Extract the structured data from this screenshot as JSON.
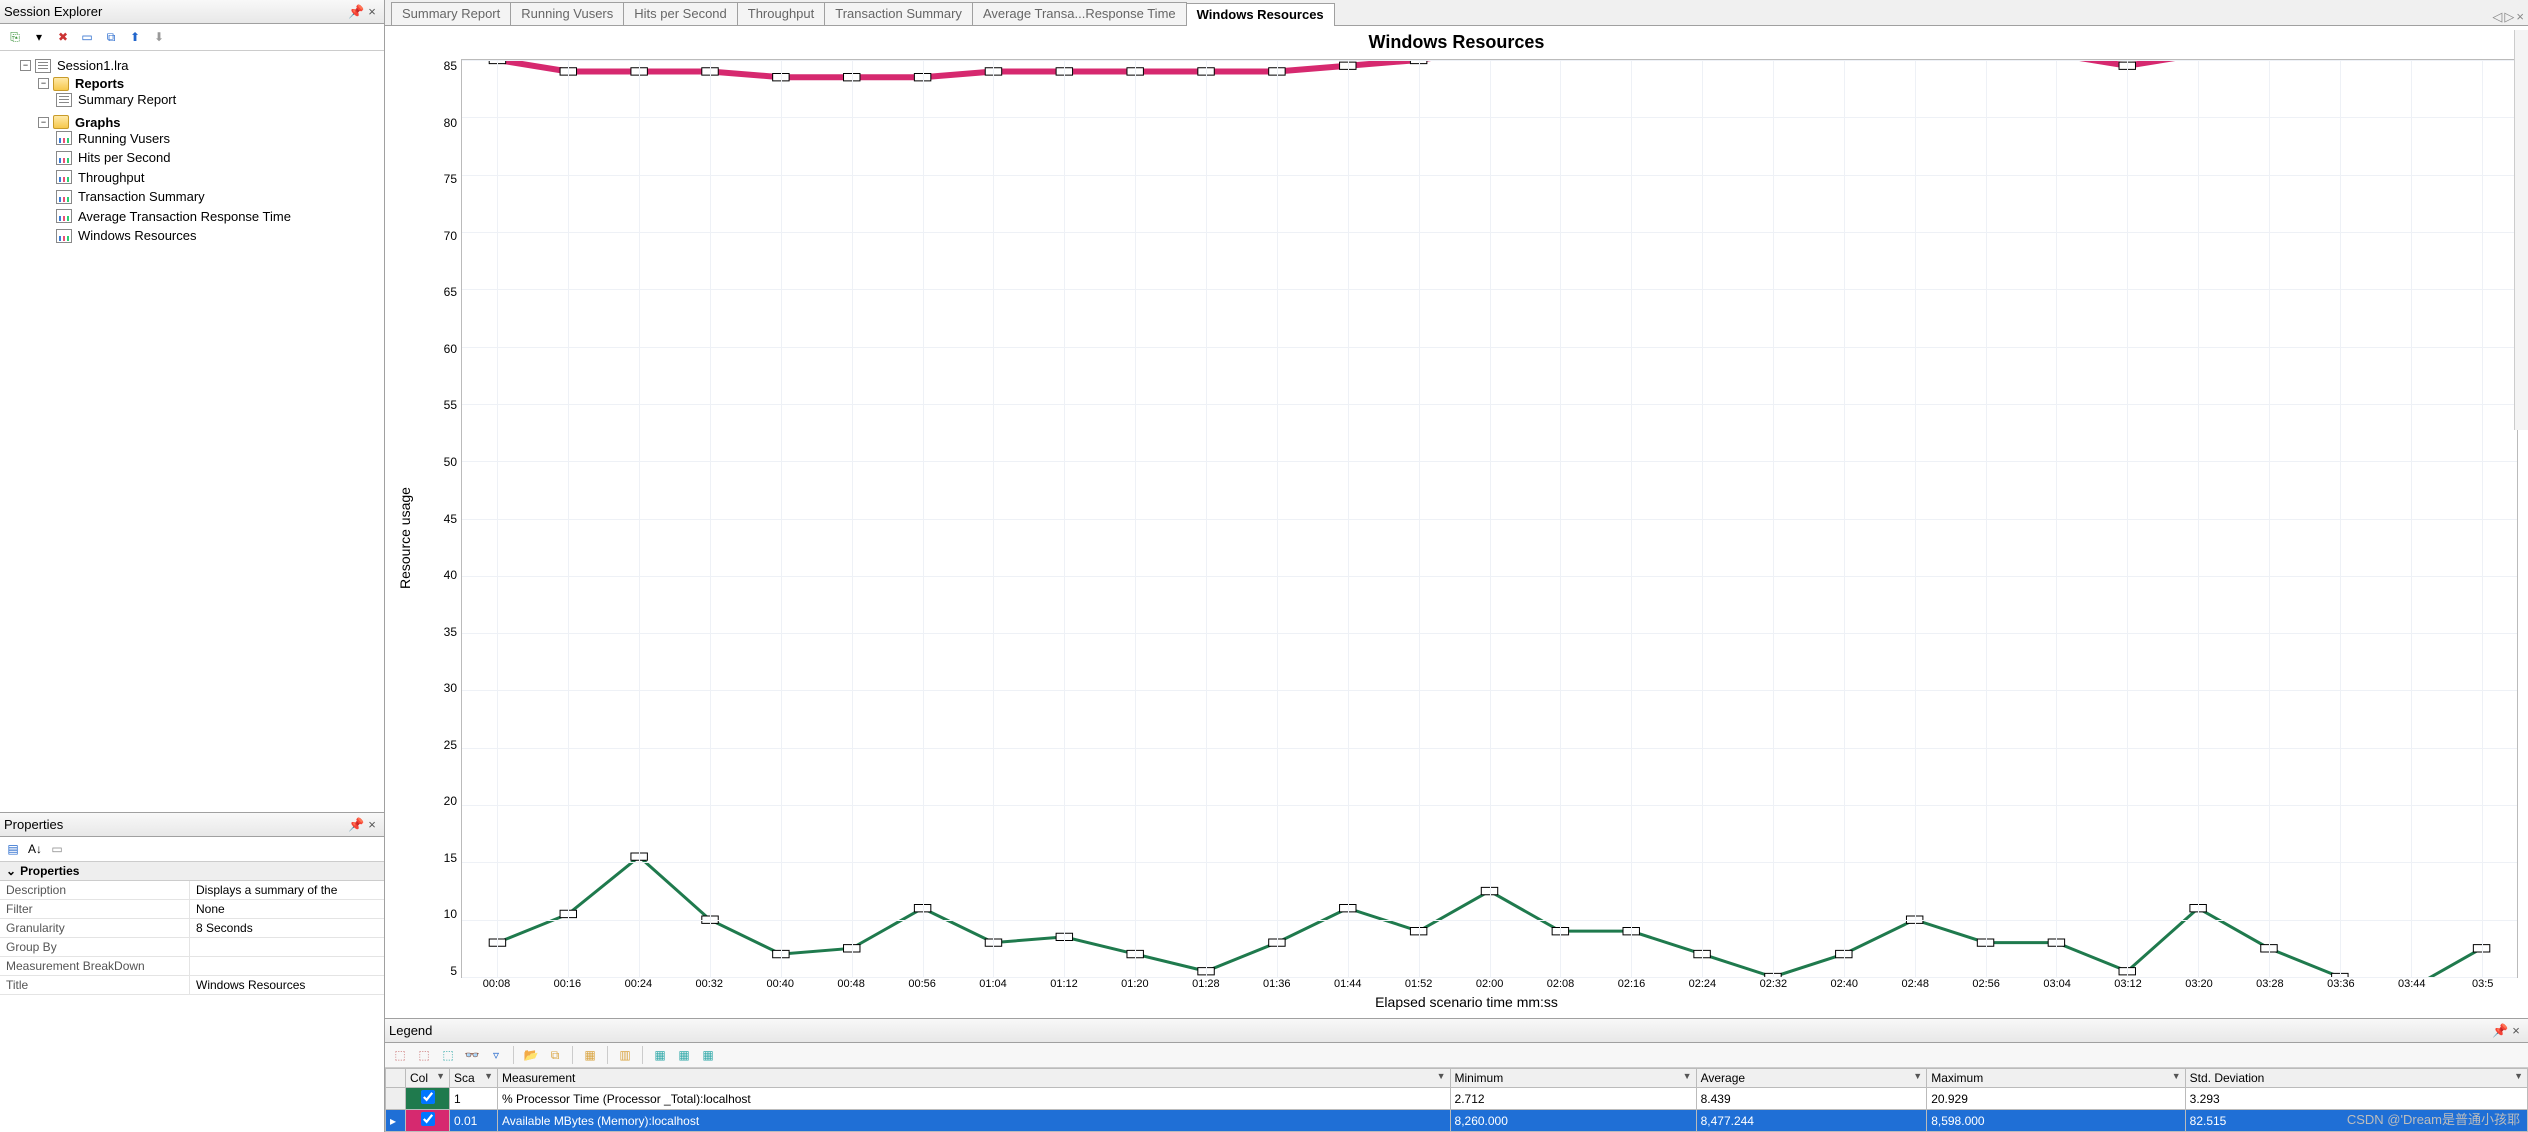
{
  "sessionExplorer": {
    "title": "Session Explorer",
    "rootLabel": "Session1.lra",
    "reports": {
      "label": "Reports",
      "items": [
        "Summary Report"
      ]
    },
    "graphs": {
      "label": "Graphs",
      "items": [
        "Running Vusers",
        "Hits per Second",
        "Throughput",
        "Transaction Summary",
        "Average Transaction Response Time",
        "Windows Resources"
      ]
    }
  },
  "properties": {
    "title": "Properties",
    "group": "Properties",
    "rows": [
      {
        "k": "Description",
        "v": "Displays a summary of the"
      },
      {
        "k": "Filter",
        "v": "None"
      },
      {
        "k": "Granularity",
        "v": "8 Seconds"
      },
      {
        "k": "Group By",
        "v": ""
      },
      {
        "k": "Measurement BreakDown",
        "v": ""
      },
      {
        "k": "Title",
        "v": "Windows Resources"
      }
    ]
  },
  "tabs": {
    "items": [
      "Summary Report",
      "Running Vusers",
      "Hits per Second",
      "Throughput",
      "Transaction Summary",
      "Average Transa...Response Time",
      "Windows Resources"
    ],
    "activeIndex": 6
  },
  "chart": {
    "title": "Windows Resources",
    "ylabel": "Resource usage",
    "xlabel": "Elapsed scenario time mm:ss",
    "ylim": [
      5,
      85
    ],
    "ytick_step": 5,
    "xticks": [
      "00:08",
      "00:16",
      "00:24",
      "00:32",
      "00:40",
      "00:48",
      "00:56",
      "01:04",
      "01:12",
      "01:20",
      "01:28",
      "01:36",
      "01:44",
      "01:52",
      "02:00",
      "02:08",
      "02:16",
      "02:24",
      "02:32",
      "02:40",
      "02:48",
      "02:56",
      "03:04",
      "03:12",
      "03:20",
      "03:28",
      "03:36",
      "03:44",
      "03:5"
    ],
    "background_color": "#ffffff",
    "grid_color": "#eef1f6",
    "series": [
      {
        "name": "Available MBytes",
        "color": "#d6296f",
        "width": 3,
        "marker": "square",
        "values": [
          85,
          84,
          84,
          84,
          83.5,
          83.5,
          83.5,
          84,
          84,
          84,
          84,
          84,
          84.5,
          85,
          86,
          86,
          85.5,
          85.5,
          85.5,
          85.5,
          85.5,
          85.5,
          85.5,
          84.5,
          85.5,
          85.5,
          85.5,
          85.5,
          85.5
        ]
      },
      {
        "name": "% Processor Time",
        "color": "#1f7a4d",
        "width": 1.5,
        "marker": "square",
        "values": [
          8,
          10.5,
          15.5,
          10,
          7,
          7.5,
          11,
          8,
          8.5,
          7,
          5.5,
          8,
          11,
          9,
          12.5,
          9,
          9,
          7,
          5,
          7,
          10,
          8,
          8,
          5.5,
          11,
          7.5,
          5,
          4,
          7.5
        ]
      }
    ]
  },
  "legend": {
    "title": "Legend",
    "columns": [
      "",
      "Col",
      "Sca",
      "Measurement",
      "Minimum",
      "Average",
      "Maximum",
      "Std. Deviation"
    ],
    "rows": [
      {
        "rowhdr": "",
        "checked": true,
        "color": "#1f7a4d",
        "scale": "1",
        "measurement": "% Processor Time (Processor _Total):localhost",
        "min": "2.712",
        "avg": "8.439",
        "max": "20.929",
        "std": "3.293",
        "selected": false
      },
      {
        "rowhdr": "▸",
        "checked": true,
        "color": "#d6296f",
        "scale": "0.01",
        "measurement": "Available MBytes (Memory):localhost",
        "min": "8,260.000",
        "avg": "8,477.244",
        "max": "8,598.000",
        "std": "82.515",
        "selected": true
      }
    ]
  },
  "watermark": "CSDN @'Dream是普通小孩耶"
}
